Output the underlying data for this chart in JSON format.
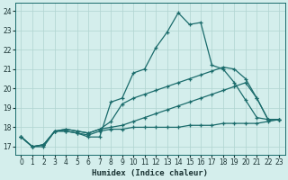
{
  "xlabel": "Humidex (Indice chaleur)",
  "xlim": [
    -0.5,
    23.5
  ],
  "ylim": [
    16.6,
    24.4
  ],
  "yticks": [
    17,
    18,
    19,
    20,
    21,
    22,
    23,
    24
  ],
  "xticks": [
    0,
    1,
    2,
    3,
    4,
    5,
    6,
    7,
    8,
    9,
    10,
    11,
    12,
    13,
    14,
    15,
    16,
    17,
    18,
    19,
    20,
    21,
    22,
    23
  ],
  "background_color": "#d4eeec",
  "grid_color": "#b0d4d0",
  "line_color": "#1a6b6b",
  "series": [
    {
      "x": [
        0,
        1,
        2,
        3,
        4,
        5,
        6,
        7,
        8,
        9,
        10,
        11,
        12,
        13,
        14,
        15,
        16,
        17,
        18,
        19,
        20,
        21,
        22,
        23
      ],
      "y": [
        17.5,
        17.0,
        17.0,
        17.8,
        17.8,
        17.7,
        17.5,
        17.5,
        19.3,
        19.5,
        20.8,
        21.0,
        22.1,
        22.9,
        23.9,
        23.3,
        23.4,
        21.2,
        21.0,
        20.3,
        19.4,
        18.5,
        18.4,
        18.4
      ]
    },
    {
      "x": [
        0,
        1,
        2,
        3,
        4,
        5,
        6,
        7,
        8,
        9,
        10,
        11,
        12,
        13,
        14,
        15,
        16,
        17,
        18,
        19,
        20,
        21,
        22,
        23
      ],
      "y": [
        17.5,
        17.0,
        17.1,
        17.8,
        17.9,
        17.8,
        17.7,
        17.9,
        18.3,
        19.2,
        19.5,
        19.7,
        19.9,
        20.1,
        20.3,
        20.5,
        20.7,
        20.9,
        21.1,
        21.0,
        20.5,
        19.5,
        18.4,
        18.4
      ]
    },
    {
      "x": [
        0,
        1,
        2,
        3,
        4,
        5,
        6,
        7,
        8,
        9,
        10,
        11,
        12,
        13,
        14,
        15,
        16,
        17,
        18,
        19,
        20,
        21,
        22,
        23
      ],
      "y": [
        17.5,
        17.0,
        17.1,
        17.8,
        17.9,
        17.8,
        17.7,
        17.9,
        18.0,
        18.1,
        18.3,
        18.5,
        18.7,
        18.9,
        19.1,
        19.3,
        19.5,
        19.7,
        19.9,
        20.1,
        20.3,
        19.5,
        18.4,
        18.4
      ]
    },
    {
      "x": [
        0,
        1,
        2,
        3,
        4,
        5,
        6,
        7,
        8,
        9,
        10,
        11,
        12,
        13,
        14,
        15,
        16,
        17,
        18,
        19,
        20,
        21,
        22,
        23
      ],
      "y": [
        17.5,
        17.0,
        17.1,
        17.8,
        17.8,
        17.7,
        17.6,
        17.8,
        17.9,
        17.9,
        18.0,
        18.0,
        18.0,
        18.0,
        18.0,
        18.1,
        18.1,
        18.1,
        18.2,
        18.2,
        18.2,
        18.2,
        18.3,
        18.4
      ]
    }
  ]
}
